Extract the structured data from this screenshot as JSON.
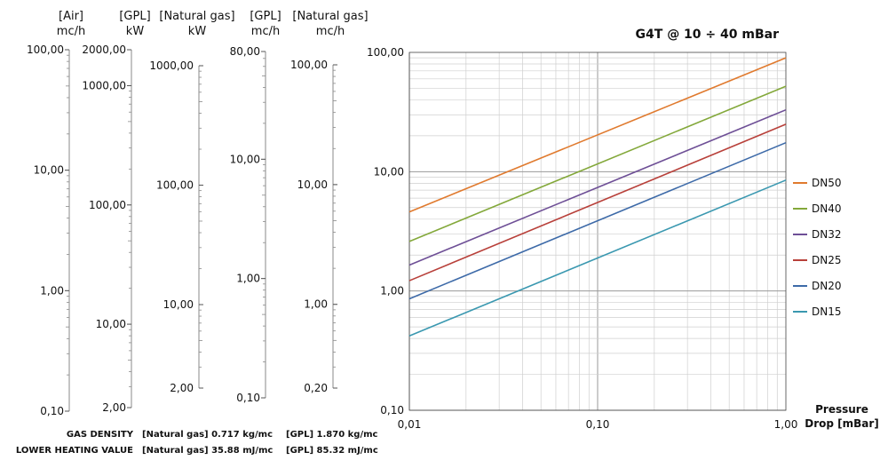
{
  "title": "G4T @ 10 ÷ 40 mBar",
  "scales": [
    {
      "header": [
        "[Air]",
        "mc/h"
      ],
      "ticks": [
        {
          "value": 100,
          "label": "100,00"
        },
        {
          "value": 10,
          "label": "10,00"
        },
        {
          "value": 1,
          "label": "1,00"
        },
        {
          "value": 0.1,
          "label": "0,10"
        }
      ]
    },
    {
      "header": [
        "[GPL]",
        "kW"
      ],
      "ticks": [
        {
          "value": 2000,
          "label": "2000,00"
        },
        {
          "value": 1000,
          "label": "1000,00"
        },
        {
          "value": 100,
          "label": "100,00"
        },
        {
          "value": 10,
          "label": "10,00"
        },
        {
          "value": 2,
          "label": "2,00"
        }
      ]
    },
    {
      "header": [
        "[Natural gas]",
        "kW"
      ],
      "ticks": [
        {
          "value": 1000,
          "label": "1000,00"
        },
        {
          "value": 100,
          "label": "100,00"
        },
        {
          "value": 10,
          "label": "10,00"
        },
        {
          "value": 2,
          "label": "2,00"
        }
      ]
    },
    {
      "header": [
        "[GPL]",
        "mc/h"
      ],
      "ticks": [
        {
          "value": 80,
          "label": "80,00"
        },
        {
          "value": 10,
          "label": "10,00"
        },
        {
          "value": 1,
          "label": "1,00"
        },
        {
          "value": 0.1,
          "label": "0,10"
        }
      ]
    },
    {
      "header": [
        "[Natural gas]",
        "mc/h"
      ],
      "ticks": [
        {
          "value": 100,
          "label": "100,00"
        },
        {
          "value": 10,
          "label": "10,00"
        },
        {
          "value": 1,
          "label": "1,00"
        },
        {
          "value": 0.2,
          "label": "0,20"
        }
      ]
    }
  ],
  "chart_data": {
    "type": "line",
    "title": "G4T @ 10 ÷ 40 mBar",
    "xlabel": "Pressure Drop [mBar]",
    "ylabel": "[Air] mc/h",
    "x_scale": "log",
    "y_scale": "log",
    "xlim": [
      0.01,
      1.0
    ],
    "ylim": [
      0.1,
      100
    ],
    "x_ticks": [
      {
        "value": 0.01,
        "label": "0,01"
      },
      {
        "value": 0.1,
        "label": "0,10"
      },
      {
        "value": 1,
        "label": "1,00"
      }
    ],
    "y_ticks": [
      {
        "value": 100,
        "label": "100,00"
      },
      {
        "value": 10,
        "label": "10,00"
      },
      {
        "value": 1,
        "label": "1,00"
      },
      {
        "value": 0.1,
        "label": "0,10"
      }
    ],
    "grid": true,
    "legend_position": "right",
    "series": [
      {
        "name": "DN50",
        "color": "#e07a2e",
        "x": [
          0.01,
          1.0
        ],
        "y": [
          4.6,
          90
        ]
      },
      {
        "name": "DN40",
        "color": "#83a83a",
        "x": [
          0.01,
          1.0
        ],
        "y": [
          2.6,
          52
        ]
      },
      {
        "name": "DN32",
        "color": "#6e4f96",
        "x": [
          0.01,
          1.0
        ],
        "y": [
          1.65,
          33
        ]
      },
      {
        "name": "DN25",
        "color": "#b8403a",
        "x": [
          0.01,
          1.0
        ],
        "y": [
          1.22,
          25
        ]
      },
      {
        "name": "DN20",
        "color": "#3d6aa8",
        "x": [
          0.01,
          1.0
        ],
        "y": [
          0.86,
          17.5
        ]
      },
      {
        "name": "DN15",
        "color": "#3a98b0",
        "x": [
          0.01,
          1.0
        ],
        "y": [
          0.42,
          8.5
        ]
      }
    ]
  },
  "footer": {
    "density_label": "GAS DENSITY",
    "density_ng": "[Natural gas] 0.717 kg/mc",
    "density_gpl": "[GPL] 1.870 kg/mc",
    "lhv_label": "LOWER HEATING VALUE",
    "lhv_ng": "[Natural gas] 35.88 mJ/mc",
    "lhv_gpl": "[GPL] 85.32 mJ/mc"
  }
}
